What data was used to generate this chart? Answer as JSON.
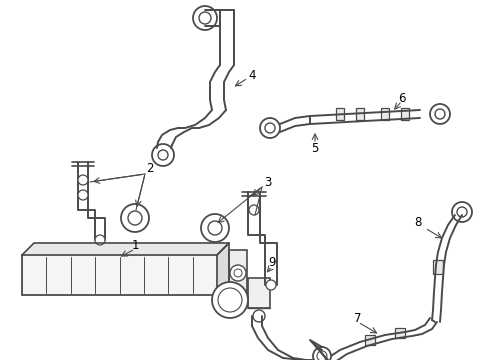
{
  "bg_color": "#ffffff",
  "line_color": "#4a4a4a",
  "label_color": "#000000",
  "fig_width": 4.9,
  "fig_height": 3.6,
  "dpi": 100,
  "font_size": 8.5
}
